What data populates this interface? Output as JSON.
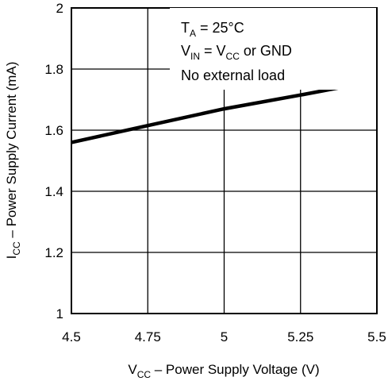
{
  "chart_data": {
    "type": "line",
    "title": "",
    "xlabel": {
      "main": "V",
      "sub": "CC",
      "rest": " – Power Supply Voltage (V)"
    },
    "ylabel": {
      "main": "I",
      "sub": "CC",
      "rest": " – Power Supply Current (mA)"
    },
    "xlim": [
      4.5,
      5.5
    ],
    "ylim": [
      1,
      2
    ],
    "xticks": [
      4.5,
      4.75,
      5,
      5.25,
      5.5
    ],
    "xtick_labels": [
      "4.5",
      "4.75",
      "5",
      "5.25",
      "5.5"
    ],
    "yticks": [
      1,
      1.2,
      1.4,
      1.6,
      1.8,
      2
    ],
    "ytick_labels": [
      "1",
      "1.2",
      "1.4",
      "1.6",
      "1.8",
      "2"
    ],
    "grid": true,
    "series": [
      {
        "x": [
          4.5,
          4.75,
          5.0,
          5.25,
          5.5
        ],
        "y": [
          1.56,
          1.615,
          1.67,
          1.715,
          1.762
        ]
      }
    ],
    "annotations": {
      "line1": {
        "main": "T",
        "sub": "A",
        "rest": " = 25°C"
      },
      "line2": {
        "main": "V",
        "sub": "IN",
        "mid": " = V",
        "sub2": "CC",
        "rest": " or GND"
      },
      "line3": "No external load"
    }
  }
}
